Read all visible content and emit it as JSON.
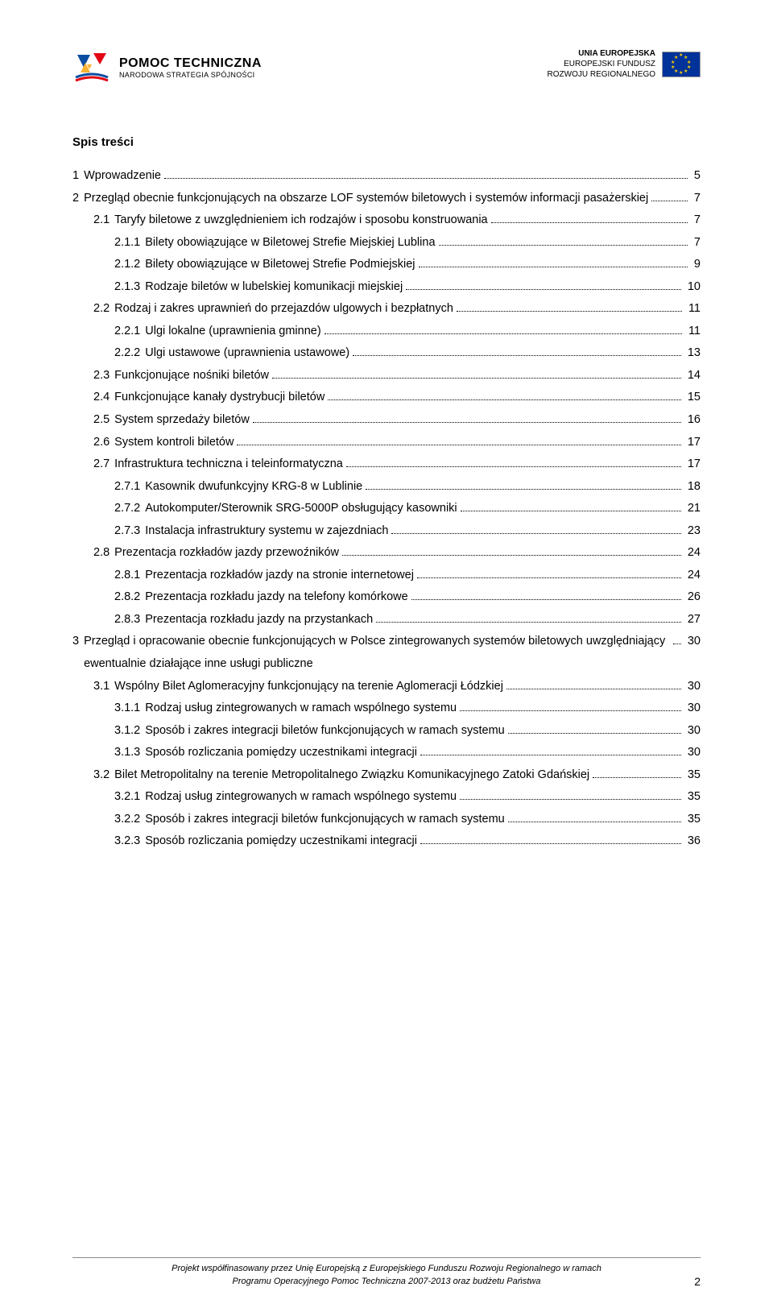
{
  "header": {
    "left_logo": {
      "title": "POMOC TECHNICZNA",
      "subtitle": "NARODOWA STRATEGIA SPÓJNOŚCI"
    },
    "right_logo": {
      "line1": "UNIA EUROPEJSKA",
      "line2": "EUROPEJSKI FUNDUSZ",
      "line3": "ROZWOJU REGIONALNEGO"
    }
  },
  "toc_title": "Spis treści",
  "toc": [
    {
      "level": 1,
      "num": "1",
      "text": "Wprowadzenie",
      "page": "5"
    },
    {
      "level": 1,
      "num": "2",
      "text": "Przegląd obecnie funkcjonujących na obszarze LOF systemów biletowych i systemów informacji pasażerskiej",
      "page": "7"
    },
    {
      "level": 2,
      "num": "2.1",
      "text": "Taryfy biletowe z uwzględnieniem ich rodzajów i sposobu konstruowania",
      "page": "7"
    },
    {
      "level": 3,
      "num": "2.1.1",
      "text": "Bilety obowiązujące w Biletowej Strefie Miejskiej Lublina",
      "page": "7"
    },
    {
      "level": 3,
      "num": "2.1.2",
      "text": "Bilety obowiązujące w Biletowej Strefie Podmiejskiej",
      "page": "9"
    },
    {
      "level": 3,
      "num": "2.1.3",
      "text": "Rodzaje biletów w lubelskiej komunikacji miejskiej",
      "page": "10"
    },
    {
      "level": 2,
      "num": "2.2",
      "text": "Rodzaj i zakres uprawnień do przejazdów ulgowych i bezpłatnych",
      "page": "11"
    },
    {
      "level": 3,
      "num": "2.2.1",
      "text": "Ulgi lokalne (uprawnienia gminne)",
      "page": "11"
    },
    {
      "level": 3,
      "num": "2.2.2",
      "text": "Ulgi ustawowe (uprawnienia ustawowe)",
      "page": "13"
    },
    {
      "level": 2,
      "num": "2.3",
      "text": "Funkcjonujące nośniki biletów",
      "page": "14"
    },
    {
      "level": 2,
      "num": "2.4",
      "text": "Funkcjonujące kanały dystrybucji biletów",
      "page": "15"
    },
    {
      "level": 2,
      "num": "2.5",
      "text": "System sprzedaży biletów",
      "page": "16"
    },
    {
      "level": 2,
      "num": "2.6",
      "text": "System kontroli biletów",
      "page": "17"
    },
    {
      "level": 2,
      "num": "2.7",
      "text": "Infrastruktura techniczna i teleinformatyczna",
      "page": "17"
    },
    {
      "level": 3,
      "num": "2.7.1",
      "text": "Kasownik dwufunkcyjny KRG-8 w Lublinie",
      "page": "18"
    },
    {
      "level": 3,
      "num": "2.7.2",
      "text": "Autokomputer/Sterownik SRG-5000P obsługujący kasowniki",
      "page": "21"
    },
    {
      "level": 3,
      "num": "2.7.3",
      "text": "Instalacja infrastruktury systemu w zajezdniach",
      "page": "23"
    },
    {
      "level": 2,
      "num": "2.8",
      "text": "Prezentacja rozkładów jazdy przewoźników",
      "page": "24"
    },
    {
      "level": 3,
      "num": "2.8.1",
      "text": "Prezentacja rozkładów jazdy na stronie internetowej",
      "page": "24"
    },
    {
      "level": 3,
      "num": "2.8.2",
      "text": "Prezentacja rozkładu jazdy na telefony komórkowe",
      "page": "26"
    },
    {
      "level": 3,
      "num": "2.8.3",
      "text": "Prezentacja rozkładu jazdy na przystankach",
      "page": "27"
    },
    {
      "level": 1,
      "num": "3",
      "text": "Przegląd i opracowanie obecnie funkcjonujących w Polsce zintegrowanych systemów biletowych uwzględniający ewentualnie działające inne usługi publiczne",
      "page": "30"
    },
    {
      "level": 2,
      "num": "3.1",
      "text": "Wspólny Bilet Aglomeracyjny funkcjonujący na terenie Aglomeracji Łódzkiej",
      "page": "30"
    },
    {
      "level": 3,
      "num": "3.1.1",
      "text": "Rodzaj usług zintegrowanych w ramach wspólnego systemu",
      "page": "30"
    },
    {
      "level": 3,
      "num": "3.1.2",
      "text": "Sposób i zakres integracji biletów funkcjonujących w ramach systemu",
      "page": "30"
    },
    {
      "level": 3,
      "num": "3.1.3",
      "text": "Sposób rozliczania pomiędzy uczestnikami integracji",
      "page": "30"
    },
    {
      "level": 2,
      "num": "3.2",
      "text": "Bilet Metropolitalny na terenie Metropolitalnego Związku Komunikacyjnego Zatoki Gdańskiej",
      "page": "35"
    },
    {
      "level": 3,
      "num": "3.2.1",
      "text": "Rodzaj usług zintegrowanych w ramach wspólnego systemu",
      "page": "35"
    },
    {
      "level": 3,
      "num": "3.2.2",
      "text": "Sposób i zakres integracji biletów funkcjonujących w ramach systemu",
      "page": "35"
    },
    {
      "level": 3,
      "num": "3.2.3",
      "text": "Sposób rozliczania pomiędzy uczestnikami integracji",
      "page": "36"
    }
  ],
  "footer": {
    "line1": "Projekt współfinasowany przez Unię Europejską z Europejskiego Funduszu Rozwoju Regionalnego w ramach",
    "line2": "Programu Operacyjnego Pomoc Techniczna 2007-2013 oraz budżetu Państwa"
  },
  "page_number": "2",
  "colors": {
    "text": "#000000",
    "background": "#ffffff",
    "eu_flag_bg": "#003399",
    "eu_star": "#ffcc00",
    "logo_blue": "#0b4ea2",
    "logo_yellow": "#f9b233",
    "logo_red": "#e30613"
  }
}
